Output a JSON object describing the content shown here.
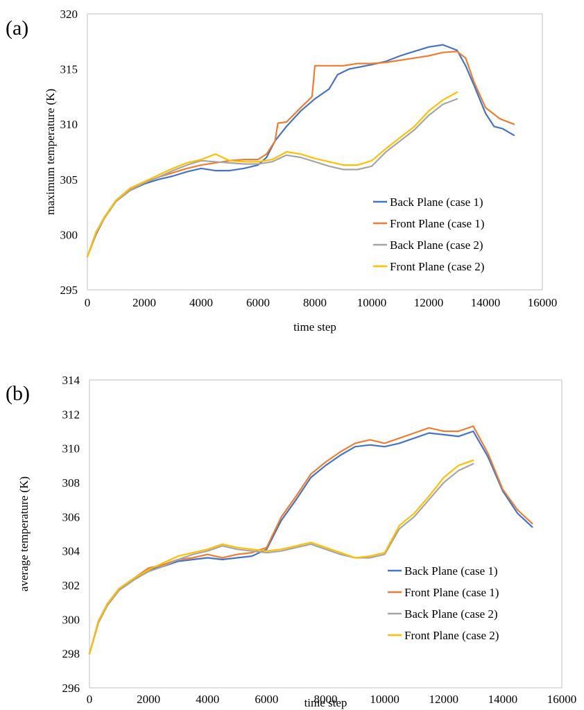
{
  "chart_data": [
    {
      "panel_label": "(a)",
      "type": "line",
      "xlabel": "time step",
      "ylabel": "maximum temperature (K)",
      "xlim": [
        0,
        16000
      ],
      "ylim": [
        295,
        320
      ],
      "xticks": [
        "0",
        "2000",
        "4000",
        "6000",
        "8000",
        "10000",
        "12000",
        "14000",
        "16000"
      ],
      "yticks": [
        "295",
        "300",
        "305",
        "310",
        "315",
        "320"
      ],
      "grid": false,
      "legend_position": "bottom-right",
      "series": [
        {
          "name": "Back Plane (case 1)",
          "color": "#4472C4",
          "x": [
            0,
            300,
            600,
            1000,
            1500,
            2000,
            2500,
            3000,
            3500,
            4000,
            4500,
            5000,
            5500,
            6000,
            6300,
            6600,
            7000,
            7500,
            8000,
            8500,
            8800,
            9200,
            9600,
            10000,
            10500,
            11000,
            11500,
            12000,
            12500,
            13000,
            13300,
            13600,
            14000,
            14300,
            14600,
            15000
          ],
          "y": [
            298.0,
            300.0,
            301.5,
            303.0,
            304.0,
            304.6,
            305.0,
            305.3,
            305.7,
            306.0,
            305.8,
            305.8,
            306.0,
            306.3,
            307.0,
            308.5,
            309.8,
            311.2,
            312.3,
            313.2,
            314.5,
            315.0,
            315.2,
            315.4,
            315.7,
            316.2,
            316.6,
            317.0,
            317.2,
            316.7,
            315.3,
            313.5,
            311.0,
            309.8,
            309.6,
            309.0
          ]
        },
        {
          "name": "Front Plane (case 1)",
          "color": "#ED7D31",
          "x": [
            0,
            300,
            600,
            1000,
            1500,
            2000,
            2500,
            3000,
            3500,
            4000,
            4500,
            5000,
            5500,
            6000,
            6300,
            6600,
            6700,
            7000,
            7500,
            7900,
            8000,
            8500,
            9000,
            9500,
            10000,
            10500,
            11000,
            11500,
            12000,
            12500,
            13000,
            13300,
            13600,
            14000,
            14500,
            15000
          ],
          "y": [
            298.0,
            300.2,
            301.6,
            303.0,
            304.1,
            304.7,
            305.2,
            305.6,
            306.0,
            306.3,
            306.5,
            306.7,
            306.8,
            306.8,
            307.3,
            308.5,
            310.1,
            310.2,
            311.5,
            312.5,
            315.3,
            315.3,
            315.3,
            315.5,
            315.5,
            315.6,
            315.8,
            316.0,
            316.2,
            316.5,
            316.6,
            316.0,
            313.8,
            311.5,
            310.5,
            310.0
          ]
        },
        {
          "name": "Back Plane (case 2)",
          "color": "#A5A5A5",
          "x": [
            0,
            300,
            600,
            1000,
            1500,
            2000,
            2500,
            3000,
            3500,
            4000,
            4500,
            5000,
            5500,
            6000,
            6500,
            7000,
            7500,
            8000,
            8500,
            9000,
            9500,
            10000,
            10500,
            11000,
            11500,
            12000,
            12500,
            13000
          ],
          "y": [
            298.0,
            300.1,
            301.5,
            303.0,
            304.0,
            304.7,
            305.2,
            305.8,
            306.3,
            306.7,
            306.6,
            306.5,
            306.4,
            306.4,
            306.6,
            307.2,
            307.0,
            306.6,
            306.2,
            305.9,
            305.9,
            306.2,
            307.5,
            308.5,
            309.5,
            310.8,
            311.8,
            312.3
          ]
        },
        {
          "name": "Front Plane (case 2)",
          "color": "#FFC000",
          "x": [
            0,
            300,
            600,
            1000,
            1500,
            2000,
            2500,
            3000,
            3500,
            4000,
            4500,
            5000,
            5500,
            6000,
            6500,
            7000,
            7500,
            8000,
            8500,
            9000,
            9500,
            10000,
            10500,
            11000,
            11500,
            12000,
            12500,
            13000
          ],
          "y": [
            298.0,
            300.2,
            301.6,
            303.1,
            304.2,
            304.8,
            305.4,
            306.0,
            306.5,
            306.8,
            307.3,
            306.7,
            306.6,
            306.6,
            306.8,
            307.5,
            307.3,
            306.9,
            306.6,
            306.3,
            306.3,
            306.7,
            307.8,
            308.8,
            309.8,
            311.2,
            312.2,
            312.9
          ]
        }
      ]
    },
    {
      "panel_label": "(b)",
      "type": "line",
      "xlabel": "time step",
      "ylabel": "average temperature (K)",
      "xlim": [
        0,
        16000
      ],
      "ylim": [
        296,
        314
      ],
      "xticks": [
        "0",
        "2000",
        "4000",
        "6000",
        "8000",
        "10000",
        "12000",
        "14000",
        "16000"
      ],
      "yticks": [
        "296",
        "298",
        "300",
        "302",
        "304",
        "306",
        "308",
        "310",
        "312",
        "314"
      ],
      "grid": false,
      "legend_position": "bottom-right",
      "series": [
        {
          "name": "Back Plane (case 1)",
          "color": "#4472C4",
          "x": [
            0,
            300,
            600,
            1000,
            1500,
            2000,
            2500,
            3000,
            3500,
            4000,
            4500,
            5000,
            5500,
            6000,
            6500,
            7000,
            7500,
            8000,
            8500,
            9000,
            9500,
            10000,
            10500,
            11000,
            11500,
            12000,
            12500,
            13000,
            13500,
            14000,
            14500,
            15000
          ],
          "y": [
            298.0,
            299.8,
            300.8,
            301.7,
            302.3,
            302.9,
            303.1,
            303.4,
            303.5,
            303.6,
            303.5,
            303.6,
            303.7,
            304.1,
            305.8,
            307.0,
            308.3,
            309.0,
            309.6,
            310.1,
            310.2,
            310.1,
            310.3,
            310.6,
            310.9,
            310.8,
            310.7,
            311.0,
            309.5,
            307.5,
            306.2,
            305.4
          ]
        },
        {
          "name": "Front Plane (case 1)",
          "color": "#ED7D31",
          "x": [
            0,
            300,
            600,
            1000,
            1500,
            2000,
            2500,
            3000,
            3500,
            4000,
            4500,
            5000,
            5500,
            6000,
            6500,
            7000,
            7500,
            8000,
            8500,
            9000,
            9500,
            10000,
            10500,
            11000,
            11500,
            12000,
            12500,
            13000,
            13500,
            14000,
            14500,
            15000
          ],
          "y": [
            298.0,
            299.9,
            300.9,
            301.8,
            302.4,
            303.0,
            303.2,
            303.5,
            303.6,
            303.8,
            303.6,
            303.8,
            303.9,
            304.2,
            306.0,
            307.2,
            308.5,
            309.2,
            309.8,
            310.3,
            310.5,
            310.3,
            310.6,
            310.9,
            311.2,
            311.0,
            311.0,
            311.3,
            309.7,
            307.6,
            306.4,
            305.6
          ]
        },
        {
          "name": "Back Plane (case 2)",
          "color": "#A5A5A5",
          "x": [
            0,
            300,
            600,
            1000,
            1500,
            2000,
            2500,
            3000,
            3500,
            4000,
            4500,
            5000,
            5500,
            6000,
            6500,
            7000,
            7500,
            8000,
            8500,
            9000,
            9500,
            10000,
            10500,
            11000,
            11500,
            12000,
            12500,
            13000
          ],
          "y": [
            298.0,
            299.8,
            300.8,
            301.7,
            302.3,
            302.8,
            303.1,
            303.5,
            303.8,
            304.0,
            304.3,
            304.1,
            304.0,
            303.9,
            304.0,
            304.2,
            304.4,
            304.1,
            303.8,
            303.6,
            303.6,
            303.8,
            305.3,
            306.0,
            307.0,
            308.0,
            308.7,
            309.1
          ]
        },
        {
          "name": "Front Plane (case 2)",
          "color": "#FFC000",
          "x": [
            0,
            300,
            600,
            1000,
            1500,
            2000,
            2500,
            3000,
            3500,
            4000,
            4500,
            5000,
            5500,
            6000,
            6500,
            7000,
            7500,
            8000,
            8500,
            9000,
            9500,
            10000,
            10500,
            11000,
            11500,
            12000,
            12500,
            13000
          ],
          "y": [
            298.0,
            299.9,
            300.9,
            301.8,
            302.4,
            302.9,
            303.3,
            303.7,
            303.9,
            304.1,
            304.4,
            304.2,
            304.1,
            304.0,
            304.1,
            304.3,
            304.5,
            304.2,
            303.9,
            303.6,
            303.7,
            303.9,
            305.5,
            306.2,
            307.2,
            308.3,
            309.0,
            309.3
          ]
        }
      ]
    }
  ]
}
